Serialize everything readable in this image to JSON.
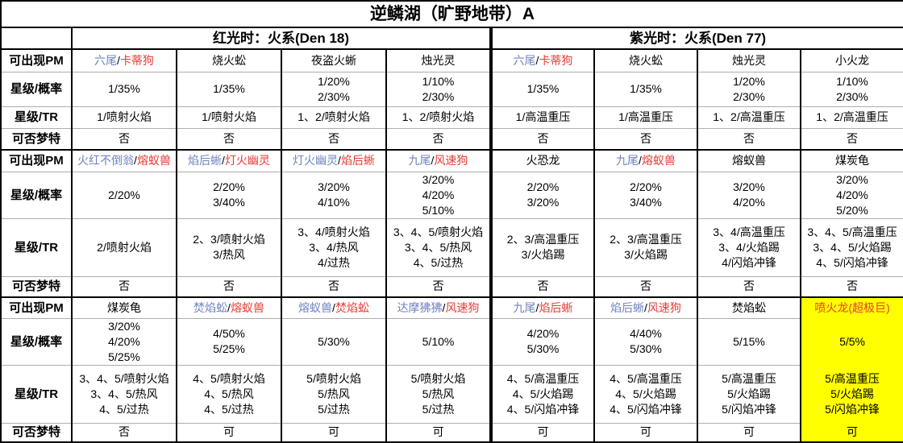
{
  "title": "逆鳞湖（旷野地带）A",
  "groups": [
    {
      "label": "红光时：火系(Den 18)"
    },
    {
      "label": "紫光时：火系(Den 77)"
    }
  ],
  "row_labels": {
    "pm": "可出现PM",
    "prob": "星级/概率",
    "tr": "星级/TR",
    "dream": "可否梦特"
  },
  "colors": {
    "blue": "#6F83BF",
    "red": "#E63B36",
    "text": "#000000",
    "highlight": "#FFFF00",
    "grid": "#ADADAD"
  },
  "blocks": [
    {
      "cols": [
        {
          "pm": [
            {
              "t": "六尾",
              "c": "blue"
            },
            {
              "t": "/",
              "c": "text"
            },
            {
              "t": "卡蒂狗",
              "c": "red"
            }
          ],
          "prob": [
            "1/35%"
          ],
          "tr": [
            "1/喷射火焰"
          ],
          "dream": "否"
        },
        {
          "pm": [
            {
              "t": "烧火蚣",
              "c": "text"
            }
          ],
          "prob": [
            "1/35%"
          ],
          "tr": [
            "1/喷射火焰"
          ],
          "dream": "否"
        },
        {
          "pm": [
            {
              "t": "夜盗火蜥",
              "c": "text"
            }
          ],
          "prob": [
            "1/20%",
            "2/30%"
          ],
          "tr": [
            "1、2/喷射火焰"
          ],
          "dream": "否"
        },
        {
          "pm": [
            {
              "t": "烛光灵",
              "c": "text"
            }
          ],
          "prob": [
            "1/10%",
            "2/30%"
          ],
          "tr": [
            "1、2/喷射火焰"
          ],
          "dream": "否"
        },
        {
          "pm": [
            {
              "t": "六尾",
              "c": "blue"
            },
            {
              "t": "/",
              "c": "text"
            },
            {
              "t": "卡蒂狗",
              "c": "red"
            }
          ],
          "prob": [
            "1/35%"
          ],
          "tr": [
            "1/高温重压"
          ],
          "dream": "否"
        },
        {
          "pm": [
            {
              "t": "烧火蚣",
              "c": "text"
            }
          ],
          "prob": [
            "1/35%"
          ],
          "tr": [
            "1/高温重压"
          ],
          "dream": "否"
        },
        {
          "pm": [
            {
              "t": "烛光灵",
              "c": "text"
            }
          ],
          "prob": [
            "1/20%",
            "2/30%"
          ],
          "tr": [
            "1、2/高温重压"
          ],
          "dream": "否"
        },
        {
          "pm": [
            {
              "t": "小火龙",
              "c": "text"
            }
          ],
          "prob": [
            "1/10%",
            "2/30%"
          ],
          "tr": [
            "1、2/高温重压"
          ],
          "dream": "否"
        }
      ]
    },
    {
      "cols": [
        {
          "pm": [
            {
              "t": "火红不倒翁",
              "c": "blue"
            },
            {
              "t": "/",
              "c": "text"
            },
            {
              "t": "熔蚁兽",
              "c": "red"
            }
          ],
          "prob": [
            "2/20%"
          ],
          "tr": [
            "2/喷射火焰"
          ],
          "dream": "否"
        },
        {
          "pm": [
            {
              "t": "焰后蜥",
              "c": "blue"
            },
            {
              "t": "/",
              "c": "text"
            },
            {
              "t": "灯火幽灵",
              "c": "red"
            }
          ],
          "prob": [
            "2/20%",
            "3/40%"
          ],
          "tr": [
            "2、3/喷射火焰",
            "3/热风"
          ],
          "dream": "否"
        },
        {
          "pm": [
            {
              "t": "灯火幽灵",
              "c": "blue"
            },
            {
              "t": "/",
              "c": "text"
            },
            {
              "t": "焰后蜥",
              "c": "red"
            }
          ],
          "prob": [
            "3/20%",
            "4/10%"
          ],
          "tr": [
            "3、4/喷射火焰",
            "3、4/热风",
            "4/过热"
          ],
          "dream": "否"
        },
        {
          "pm": [
            {
              "t": "九尾",
              "c": "blue"
            },
            {
              "t": "/",
              "c": "text"
            },
            {
              "t": "风速狗",
              "c": "red"
            }
          ],
          "prob": [
            "3/20%",
            "4/20%",
            "5/10%"
          ],
          "tr": [
            "3、4、5/喷射火焰",
            "3、4、5/热风",
            "4、5/过热"
          ],
          "dream": "否"
        },
        {
          "pm": [
            {
              "t": "火恐龙",
              "c": "text"
            }
          ],
          "prob": [
            "2/20%",
            "3/20%"
          ],
          "tr": [
            "2、3/高温重压",
            "3/火焰踢"
          ],
          "dream": "否"
        },
        {
          "pm": [
            {
              "t": "九尾",
              "c": "blue"
            },
            {
              "t": "/",
              "c": "text"
            },
            {
              "t": "熔蚁兽",
              "c": "red"
            }
          ],
          "prob": [
            "2/20%",
            "3/40%"
          ],
          "tr": [
            "2、3/高温重压",
            "3/火焰踢"
          ],
          "dream": "否"
        },
        {
          "pm": [
            {
              "t": "熔蚁兽",
              "c": "text"
            }
          ],
          "prob": [
            "3/20%",
            "4/20%"
          ],
          "tr": [
            "3、4/高温重压",
            "3、4/火焰踢",
            "4/闪焰冲锋"
          ],
          "dream": "否"
        },
        {
          "pm": [
            {
              "t": "煤炭龟",
              "c": "text"
            }
          ],
          "prob": [
            "3/20%",
            "4/20%",
            "5/20%"
          ],
          "tr": [
            "3、4、5/高温重压",
            "3、4、5/火焰踢",
            "4、5/闪焰冲锋"
          ],
          "dream": "否"
        }
      ]
    },
    {
      "cols": [
        {
          "pm": [
            {
              "t": "煤炭龟",
              "c": "text"
            }
          ],
          "prob": [
            "3/20%",
            "4/20%",
            "5/25%"
          ],
          "tr": [
            "3、4、5/喷射火焰",
            "3、4、5/热风",
            "4、5/过热"
          ],
          "dream": "否"
        },
        {
          "pm": [
            {
              "t": "焚焰蚣",
              "c": "blue"
            },
            {
              "t": "/",
              "c": "text"
            },
            {
              "t": "熔蚁兽",
              "c": "red"
            }
          ],
          "prob": [
            "4/50%",
            "5/25%"
          ],
          "tr": [
            "4、5/喷射火焰",
            "4、5/热风",
            "4、5/过热"
          ],
          "dream": "可"
        },
        {
          "pm": [
            {
              "t": "熔蚁兽",
              "c": "blue"
            },
            {
              "t": "/",
              "c": "text"
            },
            {
              "t": "焚焰蚣",
              "c": "red"
            }
          ],
          "prob": [
            "5/30%"
          ],
          "tr": [
            "5/喷射火焰",
            "5/热风",
            "5/过热"
          ],
          "dream": "可"
        },
        {
          "pm": [
            {
              "t": "达摩狒狒",
              "c": "blue"
            },
            {
              "t": "/",
              "c": "text"
            },
            {
              "t": "风速狗",
              "c": "red"
            }
          ],
          "prob": [
            "5/10%"
          ],
          "tr": [
            "5/喷射火焰",
            "5/热风",
            "5/过热"
          ],
          "dream": "可"
        },
        {
          "pm": [
            {
              "t": "九尾",
              "c": "blue"
            },
            {
              "t": "/",
              "c": "text"
            },
            {
              "t": "焰后蜥",
              "c": "red"
            }
          ],
          "prob": [
            "4/20%",
            "5/30%"
          ],
          "tr": [
            "4、5/高温重压",
            "4、5/火焰踢",
            "4、5/闪焰冲锋"
          ],
          "dream": "可"
        },
        {
          "pm": [
            {
              "t": "焰后蜥",
              "c": "blue"
            },
            {
              "t": "/",
              "c": "text"
            },
            {
              "t": "风速狗",
              "c": "red"
            }
          ],
          "prob": [
            "4/40%",
            "5/30%"
          ],
          "tr": [
            "4、5/高温重压",
            "4、5/火焰踢",
            "4、5/闪焰冲锋"
          ],
          "dream": "可"
        },
        {
          "pm": [
            {
              "t": "焚焰蚣",
              "c": "text"
            }
          ],
          "prob": [
            "5/15%"
          ],
          "tr": [
            "5/高温重压",
            "5/火焰踢",
            "5/闪焰冲锋"
          ],
          "dream": "可"
        },
        {
          "pm": [
            {
              "t": "喷火龙(超极巨)",
              "c": "red"
            }
          ],
          "prob": [
            "5/5%"
          ],
          "tr": [
            "5/高温重压",
            "5/火焰踢",
            "5/闪焰冲锋"
          ],
          "dream": "可",
          "highlight": true
        }
      ]
    }
  ]
}
